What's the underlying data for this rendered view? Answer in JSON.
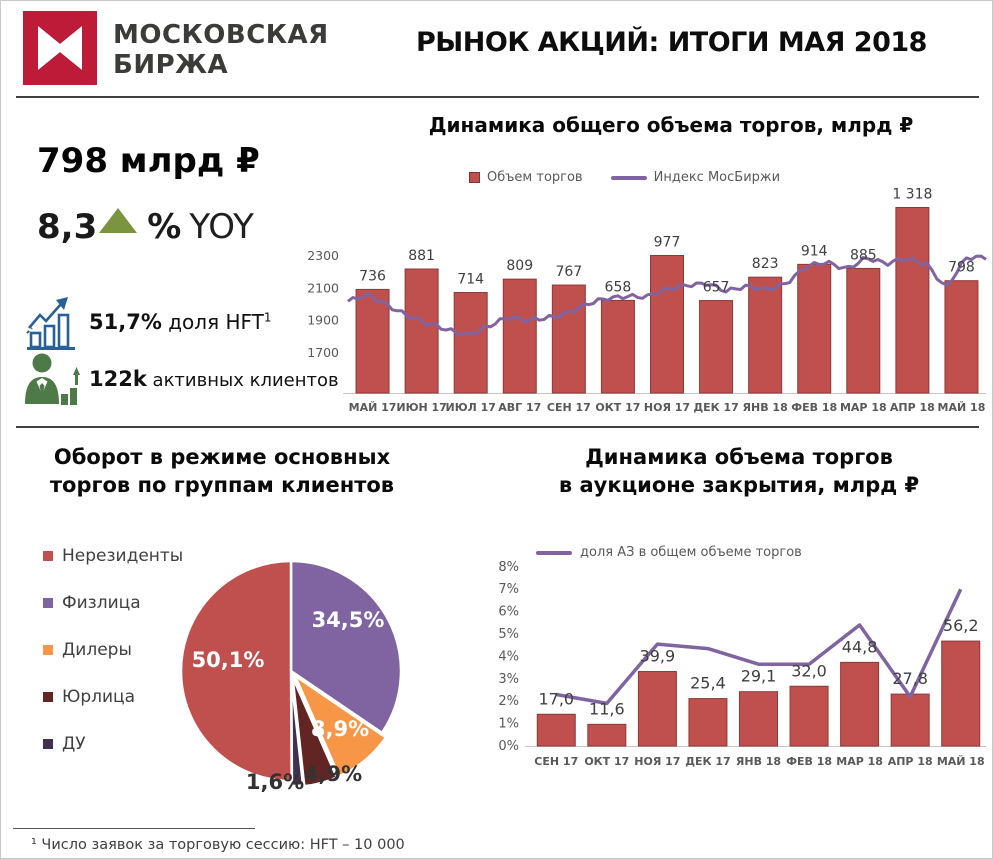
{
  "header": {
    "brand_line1": "МОСКОВСКАЯ",
    "brand_line2": "БИРЖА",
    "title": "РЫНОК АКЦИЙ: ИТОГИ МАЯ 2018"
  },
  "kpi": {
    "volume": "798 млрд ₽",
    "yoy_value": "8,3",
    "yoy_pct": "%",
    "yoy_label": "YOY",
    "hft_value": "51,7%",
    "hft_label": " доля HFT",
    "hft_sup": "1",
    "clients_value": "122k",
    "clients_label": " активных клиентов"
  },
  "footnote": "¹ Число заявок за торговую сессию: HFT – 10 000",
  "colors": {
    "brand_red": "#be1b38",
    "bar_red": "#C0504D",
    "bar_border": "#8c3a38",
    "line_purple": "#8064A2",
    "axis_gray": "#595959",
    "label_gray": "#404040",
    "baseline_gray": "#c6c6c6",
    "triangle_green": "#7a943f",
    "icon_blue": "#2a6099",
    "icon_green": "#4e7a4a"
  },
  "chart_data": [
    {
      "id": "total-volume",
      "type": "bar",
      "title": "Динамика общего объема торгов, млрд ₽",
      "legend_bar": "Объем торгов",
      "legend_line": "Индекс МосБиржи",
      "categories": [
        "МАЙ 17",
        "ИЮН 17",
        "ИЮЛ 17",
        "АВГ 17",
        "СЕН 17",
        "ОКТ 17",
        "НОЯ 17",
        "ДЕК 17",
        "ЯНВ 18",
        "ФЕВ 18",
        "МАР 18",
        "АПР 18",
        "МАЙ 18"
      ],
      "values": [
        736,
        881,
        714,
        809,
        767,
        658,
        977,
        657,
        823,
        914,
        885,
        1318,
        798
      ],
      "value_labels": [
        "736",
        "881",
        "714",
        "809",
        "767",
        "658",
        "977",
        "657",
        "823",
        "914",
        "885",
        "1 318",
        "798"
      ],
      "bar_axis_max": 1350,
      "y_ticks": [
        2300,
        2100,
        1900,
        1700
      ],
      "line_name": "Индекс МосБиржи",
      "line_axis_range": [
        1700,
        2300
      ],
      "line_points": [
        2020,
        2050,
        1995,
        1940,
        1880,
        1835,
        1815,
        1870,
        1915,
        1895,
        1925,
        1950,
        1995,
        2035,
        2060,
        2050,
        2085,
        2120,
        2140,
        2080,
        2105,
        2095,
        2140,
        2230,
        2255,
        2225,
        2295,
        2245,
        2280,
        2260,
        2105,
        2280,
        2290
      ],
      "grid": false,
      "legend_position": "top"
    },
    {
      "id": "client-groups",
      "type": "pie",
      "title_line1": "Оборот в режиме основных",
      "title_line2": "торгов по группам клиентов",
      "slices": [
        {
          "label": "Нерезиденты",
          "value": 50.1,
          "display": "50,1%",
          "color": "#C0504D",
          "label_color": "#ffffff",
          "label_pos": [
            -63,
            -4
          ],
          "explode": 0
        },
        {
          "label": "Физлица",
          "value": 34.5,
          "display": "34,5%",
          "color": "#8064A2",
          "label_color": "#ffffff",
          "label_pos": [
            57,
            -44
          ],
          "explode": 0
        },
        {
          "label": "Дилеры",
          "value": 8.9,
          "display": "8,9%",
          "color": "#F79646",
          "label_color": "#ffffff",
          "label_pos": [
            49,
            65
          ],
          "explode": 6
        },
        {
          "label": "Юрлица",
          "value": 4.9,
          "display": "4,9%",
          "color": "#632523",
          "label_color": "#333333",
          "label_pos": [
            42,
            110
          ],
          "explode": 6
        },
        {
          "label": "ДУ",
          "value": 1.6,
          "display": "1,6%",
          "color": "#3F3151",
          "label_color": "#333333",
          "label_pos": [
            -16,
            118
          ],
          "explode": 5
        }
      ],
      "draw_order": [
        1,
        2,
        3,
        4,
        0
      ],
      "legend_position": "left"
    },
    {
      "id": "closing-auction",
      "type": "bar",
      "title_line1": "Динамика объема торгов",
      "title_line2": "в аукционе закрытия, млрд ₽",
      "line_legend": "доля АЗ в общем объеме торгов",
      "categories": [
        "СЕН 17",
        "ОКТ 17",
        "НОЯ 17",
        "ДЕК 17",
        "ЯНВ 18",
        "ФЕВ 18",
        "МАР 18",
        "АПР 18",
        "МАЙ 18"
      ],
      "values": [
        17.0,
        11.6,
        39.9,
        25.4,
        29.1,
        32.0,
        44.8,
        27.8,
        56.2
      ],
      "value_labels": [
        "17,0",
        "11,6",
        "39,9",
        "25,4",
        "29,1",
        "32,0",
        "44,8",
        "27,8",
        "56,2"
      ],
      "line_name": "доля АЗ в общем объеме торгов",
      "line_pct": [
        2.3,
        1.9,
        4.55,
        4.35,
        3.65,
        3.65,
        5.4,
        2.2,
        7.0
      ],
      "y_ticks_pct": [
        8,
        7,
        6,
        5,
        4,
        3,
        2,
        1,
        0
      ],
      "y_axis_max_pct": 8,
      "bar_pct_divisor": 12,
      "grid": false,
      "legend_position": "top"
    }
  ]
}
